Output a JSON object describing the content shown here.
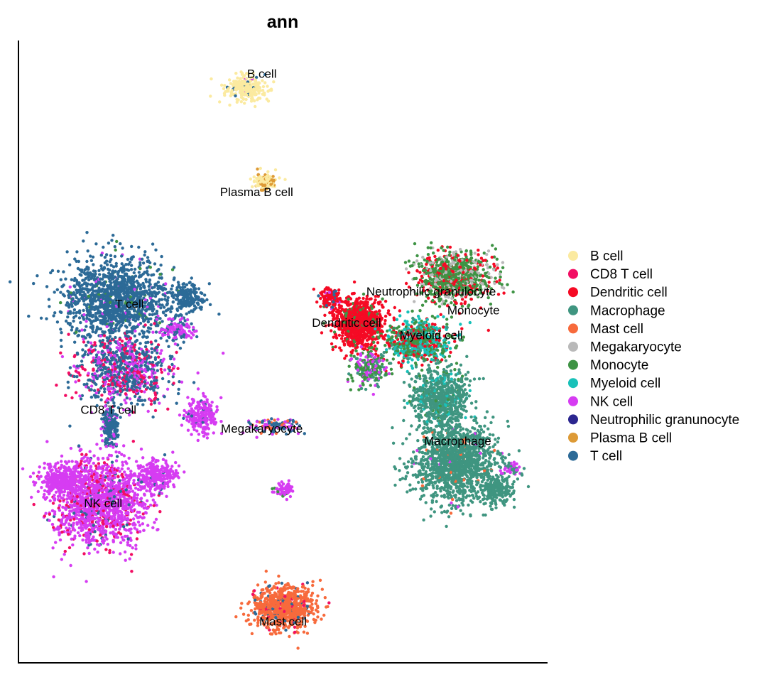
{
  "chart_data": {
    "type": "scatter",
    "title": "ann",
    "xlabel": "",
    "ylabel": "",
    "grid": false,
    "legend_placement": "right",
    "xlim": [
      0,
      100
    ],
    "ylim": [
      0,
      100
    ],
    "series": [
      {
        "name": "B cell",
        "color": "#FBEAA0"
      },
      {
        "name": "CD8 T cell",
        "color": "#F20E63"
      },
      {
        "name": "Dendritic cell",
        "color": "#F50A24"
      },
      {
        "name": "Macrophage",
        "color": "#3F9580"
      },
      {
        "name": "Mast cell",
        "color": "#F76A3C"
      },
      {
        "name": "Megakaryocyte",
        "color": "#B9B9B9"
      },
      {
        "name": "Monocyte",
        "color": "#3E9344"
      },
      {
        "name": "Myeloid cell",
        "color": "#19C1B9"
      },
      {
        "name": "NK cell",
        "color": "#D63CF2"
      },
      {
        "name": "Neutrophilic granunocyte",
        "color": "#2B268F"
      },
      {
        "name": "Plasma B cell",
        "color": "#DD9A36"
      },
      {
        "name": "T cell",
        "color": "#2C6A97"
      }
    ],
    "cluster_labels": [
      {
        "text": "B cell",
        "x": 46,
        "y": 94
      },
      {
        "text": "Plasma B cell",
        "x": 45,
        "y": 75
      },
      {
        "text": "T cell",
        "x": 21,
        "y": 57
      },
      {
        "text": "Neutrophilic granulocyte",
        "x": 78,
        "y": 59
      },
      {
        "text": "Monocyte",
        "x": 86,
        "y": 56
      },
      {
        "text": "Dendritic cell",
        "x": 62,
        "y": 54
      },
      {
        "text": "Myeloid cell",
        "x": 78,
        "y": 52
      },
      {
        "text": "CD8 T cell",
        "x": 17,
        "y": 40
      },
      {
        "text": "Megakaryocyte",
        "x": 46,
        "y": 37
      },
      {
        "text": "Macrophage",
        "x": 83,
        "y": 35
      },
      {
        "text": "NK cell",
        "x": 16,
        "y": 25
      },
      {
        "text": "Mast cell",
        "x": 50,
        "y": 6
      }
    ]
  }
}
